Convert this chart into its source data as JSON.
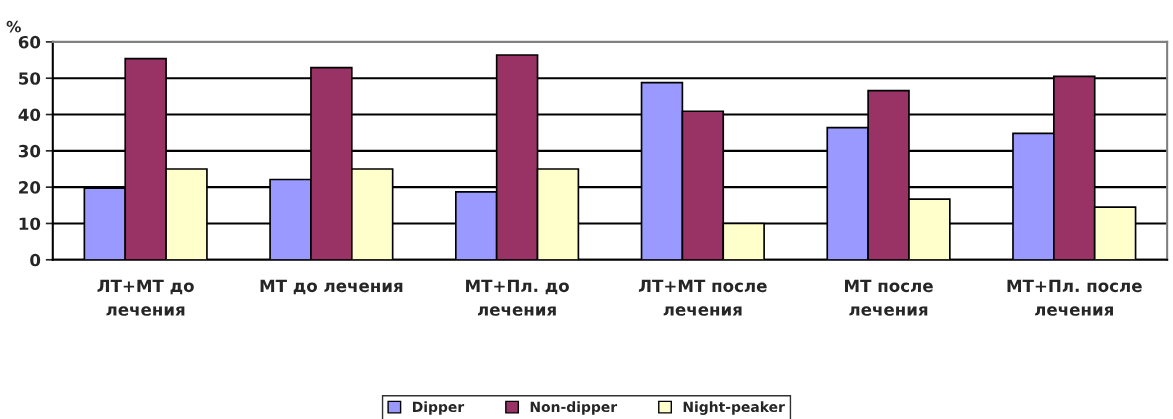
{
  "chart_data": {
    "type": "bar",
    "ylabel": "%",
    "categories": [
      "ЛТ+МТ до лечения",
      "МТ до лечения",
      "МТ+Пл. до лечения",
      "ЛТ+МТ после лечения",
      "МТ после лечения",
      "МТ+Пл. после лечения"
    ],
    "series": [
      {
        "name": "Dipper",
        "color": "#9999ff",
        "values": [
          19.7,
          22.1,
          18.7,
          48.8,
          36.4,
          34.8
        ]
      },
      {
        "name": "Non-dipper",
        "color": "#993366",
        "values": [
          55.4,
          52.9,
          56.4,
          40.9,
          46.6,
          50.5
        ]
      },
      {
        "name": "Night-peaker",
        "color": "#ffffcc",
        "values": [
          25,
          25,
          25,
          10,
          16.7,
          14.5
        ]
      }
    ],
    "ylim": [
      0,
      60
    ],
    "yticks": [
      0,
      10,
      20,
      30,
      40,
      50,
      60
    ],
    "grid": "y",
    "legend": "bottom"
  }
}
